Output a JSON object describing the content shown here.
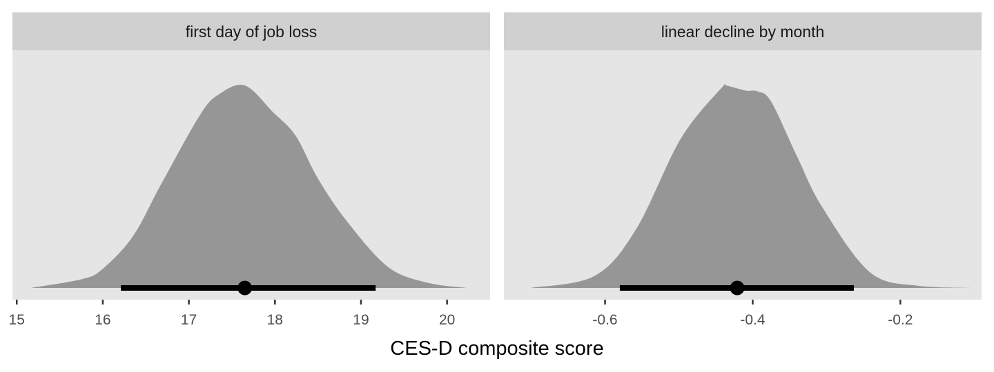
{
  "chart_data": [
    {
      "type": "density-halfeye",
      "facet": "first day of job loss",
      "xlabel": "CES-D composite score",
      "xlim": [
        14.95,
        20.5
      ],
      "xticks": [
        15,
        16,
        17,
        18,
        19,
        20
      ],
      "xtick_labels": [
        "15",
        "16",
        "17",
        "18",
        "19",
        "20"
      ],
      "density": {
        "x": [
          15.16,
          15.76,
          16.0,
          16.35,
          16.68,
          17.13,
          17.35,
          17.65,
          17.98,
          18.24,
          18.5,
          18.83,
          19.31,
          19.76,
          20.23
        ],
        "relative_height": [
          0,
          0.044,
          0.095,
          0.255,
          0.514,
          0.854,
          0.956,
          1.0,
          0.867,
          0.752,
          0.54,
          0.333,
          0.105,
          0.027,
          0
        ]
      },
      "point_estimate": 17.65,
      "interval": [
        16.21,
        19.17
      ],
      "grid": false
    },
    {
      "type": "density-halfeye",
      "facet": "linear decline by month",
      "xlabel": "CES-D composite score",
      "xlim": [
        -0.737,
        -0.09
      ],
      "xticks": [
        -0.6,
        -0.4,
        -0.2
      ],
      "xtick_labels": [
        "-0.6",
        "-0.4",
        "-0.2"
      ],
      "density": {
        "x": [
          -0.701,
          -0.614,
          -0.558,
          -0.497,
          -0.44,
          -0.436,
          -0.41,
          -0.393,
          -0.375,
          -0.34,
          -0.306,
          -0.241,
          -0.175,
          -0.105
        ],
        "relative_height": [
          0,
          0.06,
          0.29,
          0.74,
          0.997,
          1.0,
          0.975,
          0.97,
          0.92,
          0.65,
          0.4,
          0.077,
          0.01,
          0
        ]
      },
      "point_estimate": -0.421,
      "interval": [
        -0.58,
        -0.263
      ],
      "grid": false
    }
  ],
  "colors": {
    "panel": "#e5e5e5",
    "strip": "#d0d0d0",
    "density": "#969696",
    "interval": "#000000"
  }
}
